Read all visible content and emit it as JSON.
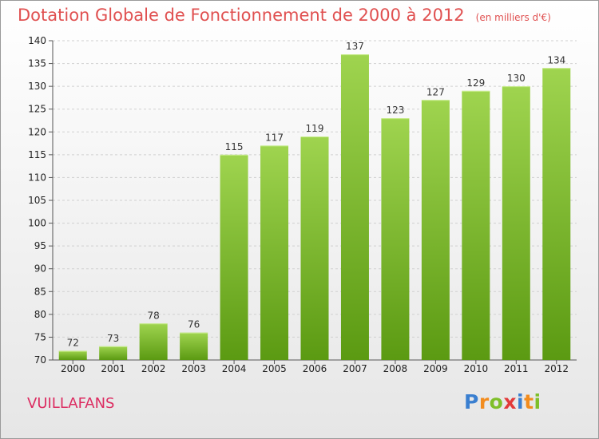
{
  "header": {
    "title": "Dotation Globale de Fonctionnement de 2000 à 2012",
    "unit": "(en milliers d'€)"
  },
  "footer": {
    "commune": "VUILLAFANS",
    "logo": {
      "letters": [
        "P",
        "r",
        "o",
        "x",
        "i",
        "t",
        "i"
      ],
      "colors": [
        "#3a7fd0",
        "#f28c1e",
        "#7fbf2a",
        "#e23a3a",
        "#3a7fd0",
        "#f28c1e",
        "#7fbf2a"
      ]
    }
  },
  "colors": {
    "bar_light": "#9fd44f",
    "bar_dark": "#5b9a12",
    "grid": "#d0d0d0",
    "title": "#e05050",
    "commune": "#dc2c61"
  },
  "chart_data": {
    "type": "bar",
    "title": "Dotation Globale de Fonctionnement de 2000 à 2012",
    "subtitle": "(en milliers d'€)",
    "categories": [
      "2000",
      "2001",
      "2002",
      "2003",
      "2004",
      "2005",
      "2006",
      "2007",
      "2008",
      "2009",
      "2010",
      "2011",
      "2012"
    ],
    "values": [
      72,
      73,
      78,
      76,
      115,
      117,
      119,
      137,
      123,
      127,
      129,
      130,
      134
    ],
    "ylim": [
      70,
      140
    ],
    "yticks": [
      70,
      75,
      80,
      85,
      90,
      95,
      100,
      105,
      110,
      115,
      120,
      125,
      130,
      135,
      140
    ],
    "grid": true,
    "xlabel": "",
    "ylabel": ""
  }
}
